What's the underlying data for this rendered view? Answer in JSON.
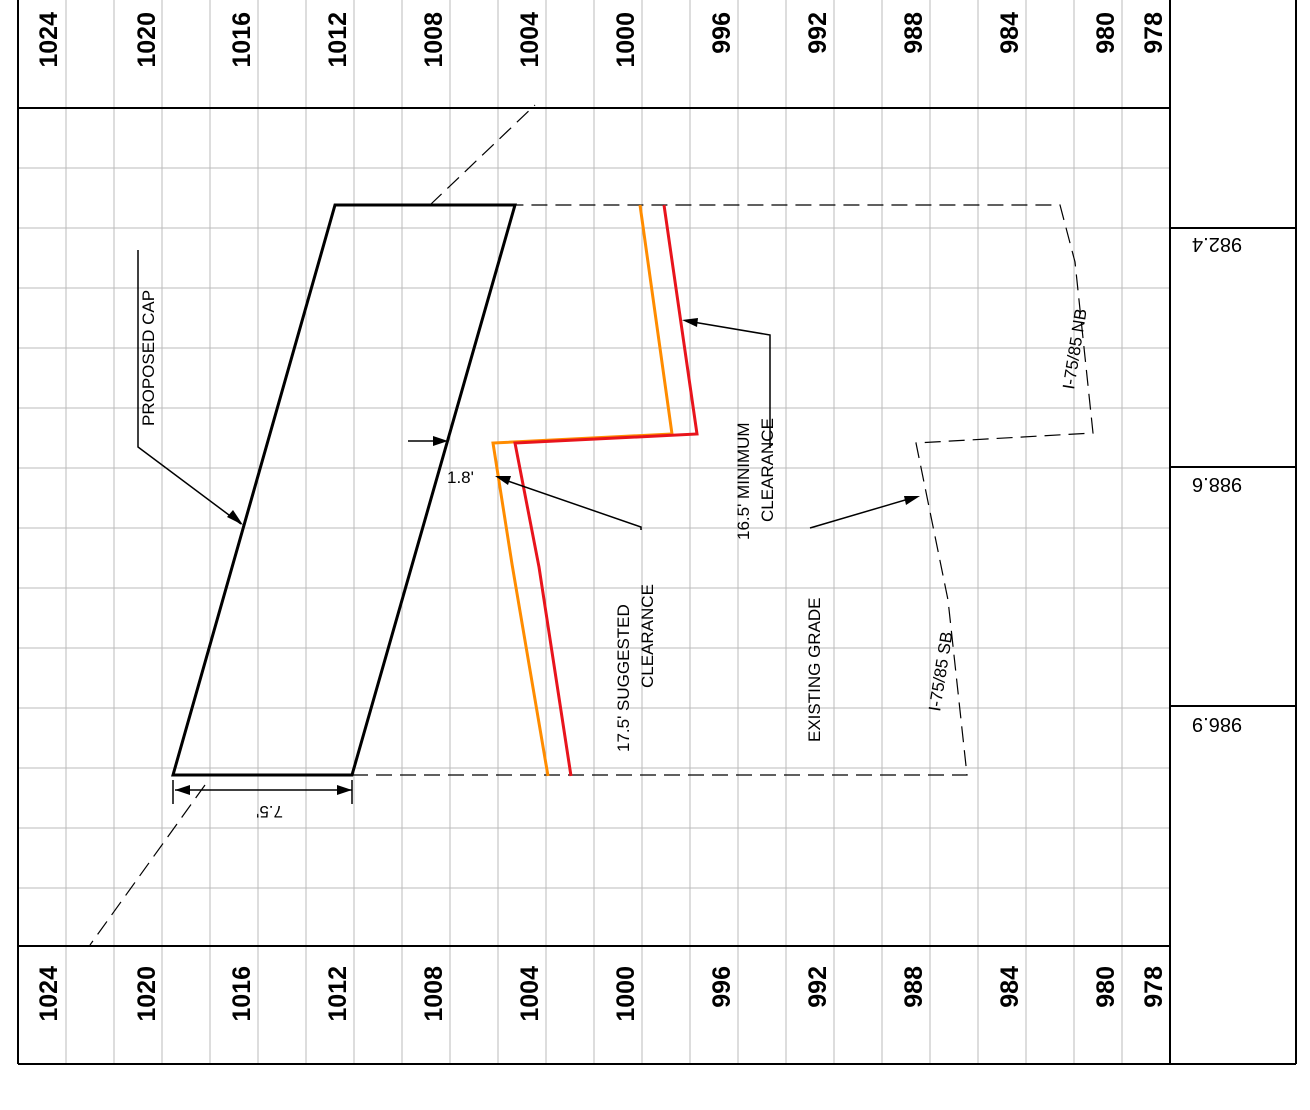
{
  "elevation_labels": [
    "1024",
    "1020",
    "1016",
    "1012",
    "1008",
    "1004",
    "1000",
    "996",
    "992",
    "988",
    "984",
    "980",
    "978"
  ],
  "labels": {
    "proposed_cap": "PROPOSED CAP",
    "suggested_line1": "17.5' SUGGESTED",
    "suggested_line2": "CLEARANCE",
    "minimum_line1": "16.5' MINIMUM",
    "minimum_line2": "CLEARANCE",
    "existing_grade": "EXISTING GRADE",
    "sb": "I-75/85 SB",
    "nb": "I-75/85 NB",
    "dim_cap_width": "7.5'",
    "dim_gap": "1.8'"
  },
  "profile_grades": [
    "986.9",
    "988.6",
    "982.4"
  ],
  "colors": {
    "suggested_clearance": "#ff8c00",
    "minimum_clearance": "#e8141c",
    "grid": "#bbbbbb"
  }
}
